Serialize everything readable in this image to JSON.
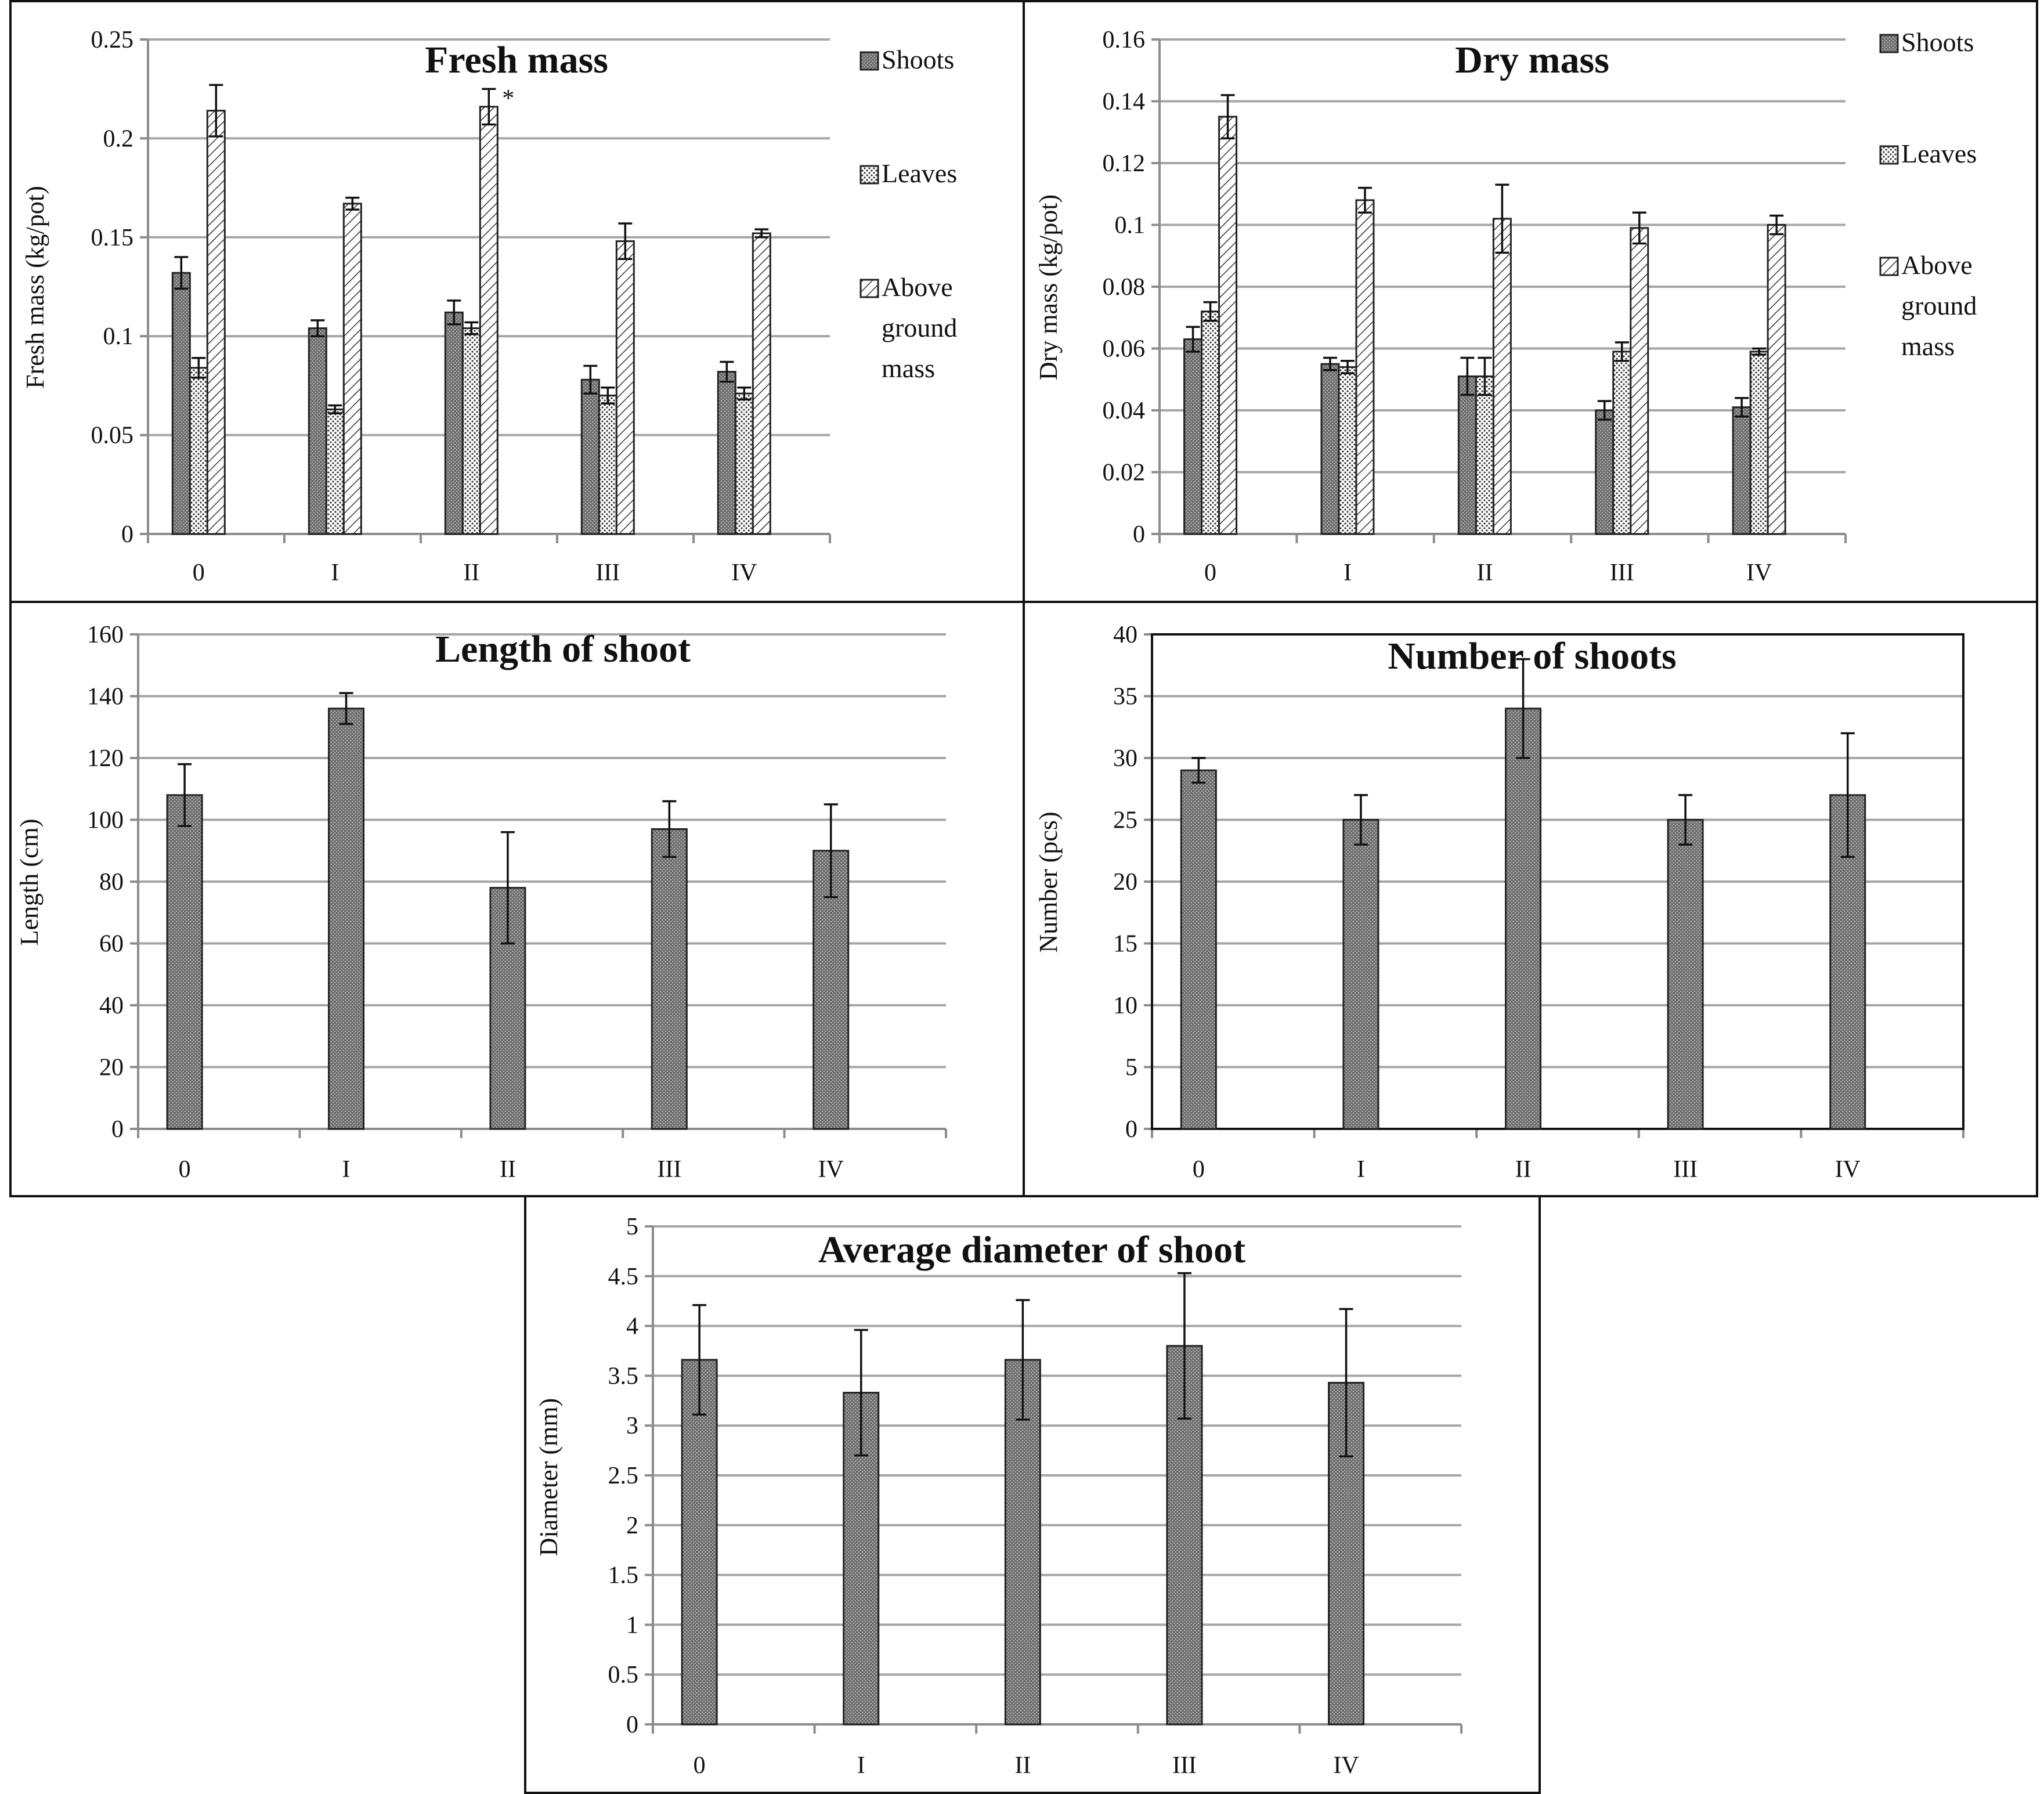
{
  "chart_data": [
    {
      "type": "bar",
      "title": "Fresh mass",
      "ylabel": "Fresh mass (kg/pot)",
      "xlabel": "",
      "categories": [
        "0",
        "I",
        "II",
        "III",
        "IV"
      ],
      "ylim": [
        0,
        0.25
      ],
      "yticks": [
        "0",
        "0.05",
        "0.1",
        "0.15",
        "0.2",
        "0.25"
      ],
      "series": [
        {
          "name": "Shoots",
          "pattern": "dark",
          "values": [
            0.132,
            0.104,
            0.112,
            0.078,
            0.082
          ],
          "errors": [
            0.008,
            0.004,
            0.006,
            0.007,
            0.005
          ]
        },
        {
          "name": "Leaves",
          "pattern": "dots",
          "values": [
            0.084,
            0.063,
            0.104,
            0.07,
            0.071
          ],
          "errors": [
            0.005,
            0.002,
            0.003,
            0.004,
            0.003
          ]
        },
        {
          "name": "Above ground mass",
          "pattern": "hatch",
          "values": [
            0.214,
            0.167,
            0.216,
            0.148,
            0.152
          ],
          "errors": [
            0.013,
            0.003,
            0.009,
            0.009,
            0.002
          ]
        }
      ],
      "annotations": [
        {
          "category": "II",
          "series": "Above ground mass",
          "text": "*"
        }
      ],
      "legend": "right",
      "grid": true
    },
    {
      "type": "bar",
      "title": "Dry mass",
      "ylabel": "Dry mass (kg/pot)",
      "xlabel": "",
      "categories": [
        "0",
        "I",
        "II",
        "III",
        "IV"
      ],
      "ylim": [
        0,
        0.16
      ],
      "yticks": [
        "0",
        "0.02",
        "0.04",
        "0.06",
        "0.08",
        "0.1",
        "0.12",
        "0.14",
        "0.16"
      ],
      "series": [
        {
          "name": "Shoots",
          "pattern": "dark",
          "values": [
            0.063,
            0.055,
            0.051,
            0.04,
            0.041
          ],
          "errors": [
            0.004,
            0.002,
            0.006,
            0.003,
            0.003
          ]
        },
        {
          "name": "Leaves",
          "pattern": "dots",
          "values": [
            0.072,
            0.054,
            0.051,
            0.059,
            0.059
          ],
          "errors": [
            0.003,
            0.002,
            0.006,
            0.003,
            0.001
          ]
        },
        {
          "name": "Above ground mass",
          "pattern": "hatch",
          "values": [
            0.135,
            0.108,
            0.102,
            0.099,
            0.1
          ],
          "errors": [
            0.007,
            0.004,
            0.011,
            0.005,
            0.003
          ]
        }
      ],
      "legend": "right",
      "grid": true
    },
    {
      "type": "bar",
      "title": "Length of shoot",
      "ylabel": "Length (cm)",
      "xlabel": "",
      "categories": [
        "0",
        "I",
        "II",
        "III",
        "IV"
      ],
      "ylim": [
        0,
        160
      ],
      "yticks": [
        "0",
        "20",
        "40",
        "60",
        "80",
        "100",
        "120",
        "140",
        "160"
      ],
      "series": [
        {
          "name": "Length",
          "pattern": "dark",
          "values": [
            108,
            136,
            78,
            97,
            90
          ],
          "errors": [
            10,
            5,
            18,
            9,
            15
          ]
        }
      ],
      "legend": "none",
      "grid": true
    },
    {
      "type": "bar",
      "title": "Number of shoots",
      "ylabel": "Number (pcs)",
      "xlabel": "",
      "categories": [
        "0",
        "I",
        "II",
        "III",
        "IV"
      ],
      "ylim": [
        0,
        40
      ],
      "yticks": [
        "0",
        "5",
        "10",
        "15",
        "20",
        "25",
        "30",
        "35",
        "40"
      ],
      "series": [
        {
          "name": "Number",
          "pattern": "dark",
          "values": [
            29,
            25,
            34,
            25,
            27
          ],
          "errors": [
            1,
            2,
            4,
            2,
            5
          ]
        }
      ],
      "legend": "none",
      "grid": true
    },
    {
      "type": "bar",
      "title": "Average diameter of shoot",
      "ylabel": "Diameter (mm)",
      "xlabel": "",
      "categories": [
        "0",
        "I",
        "II",
        "III",
        "IV"
      ],
      "ylim": [
        0,
        5
      ],
      "yticks": [
        "0",
        "0.5",
        "1",
        "1.5",
        "2",
        "2.5",
        "3",
        "3.5",
        "4",
        "4.5",
        "5"
      ],
      "series": [
        {
          "name": "Diameter",
          "pattern": "dark",
          "values": [
            3.66,
            3.33,
            3.66,
            3.8,
            3.43
          ],
          "errors": [
            0.55,
            0.63,
            0.6,
            0.73,
            0.74
          ]
        }
      ],
      "legend": "none",
      "grid": true
    }
  ]
}
